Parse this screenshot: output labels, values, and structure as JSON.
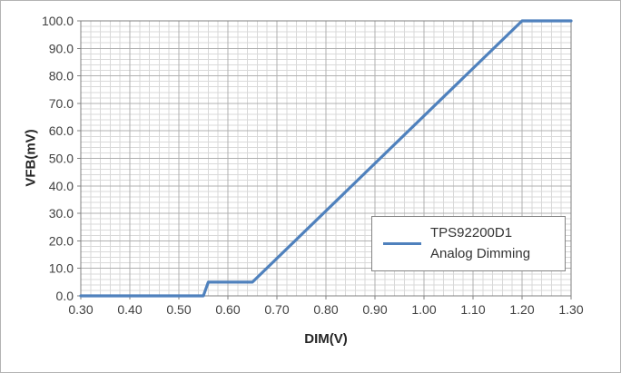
{
  "chart_data": {
    "type": "line",
    "title": "",
    "xlabel": "DIM(V)",
    "ylabel": "VFB(mV)",
    "xlim": [
      0.3,
      1.3
    ],
    "ylim": [
      0.0,
      100.0
    ],
    "x_major_step": 0.1,
    "x_minor_step": 0.02,
    "y_major_step": 10.0,
    "y_minor_step": 2.0,
    "x_ticks": [
      "0.30",
      "0.40",
      "0.50",
      "0.60",
      "0.70",
      "0.80",
      "0.90",
      "1.00",
      "1.10",
      "1.20",
      "1.30"
    ],
    "y_ticks": [
      "0.0",
      "10.0",
      "20.0",
      "30.0",
      "40.0",
      "50.0",
      "60.0",
      "70.0",
      "80.0",
      "90.0",
      "100.0"
    ],
    "grid": "major+minor",
    "legend_position": "inside-right",
    "axis_color": "#808080",
    "major_grid_color": "#b0b0b0",
    "minor_grid_color": "#d9d9d9",
    "text_color": "#404040",
    "series": [
      {
        "name": "TPS92200D1 Analog Dimming",
        "color": "#4f81bd",
        "points": [
          [
            0.3,
            0
          ],
          [
            0.55,
            0
          ],
          [
            0.56,
            5
          ],
          [
            0.65,
            5
          ],
          [
            1.2,
            100
          ],
          [
            1.3,
            100
          ]
        ]
      }
    ]
  }
}
